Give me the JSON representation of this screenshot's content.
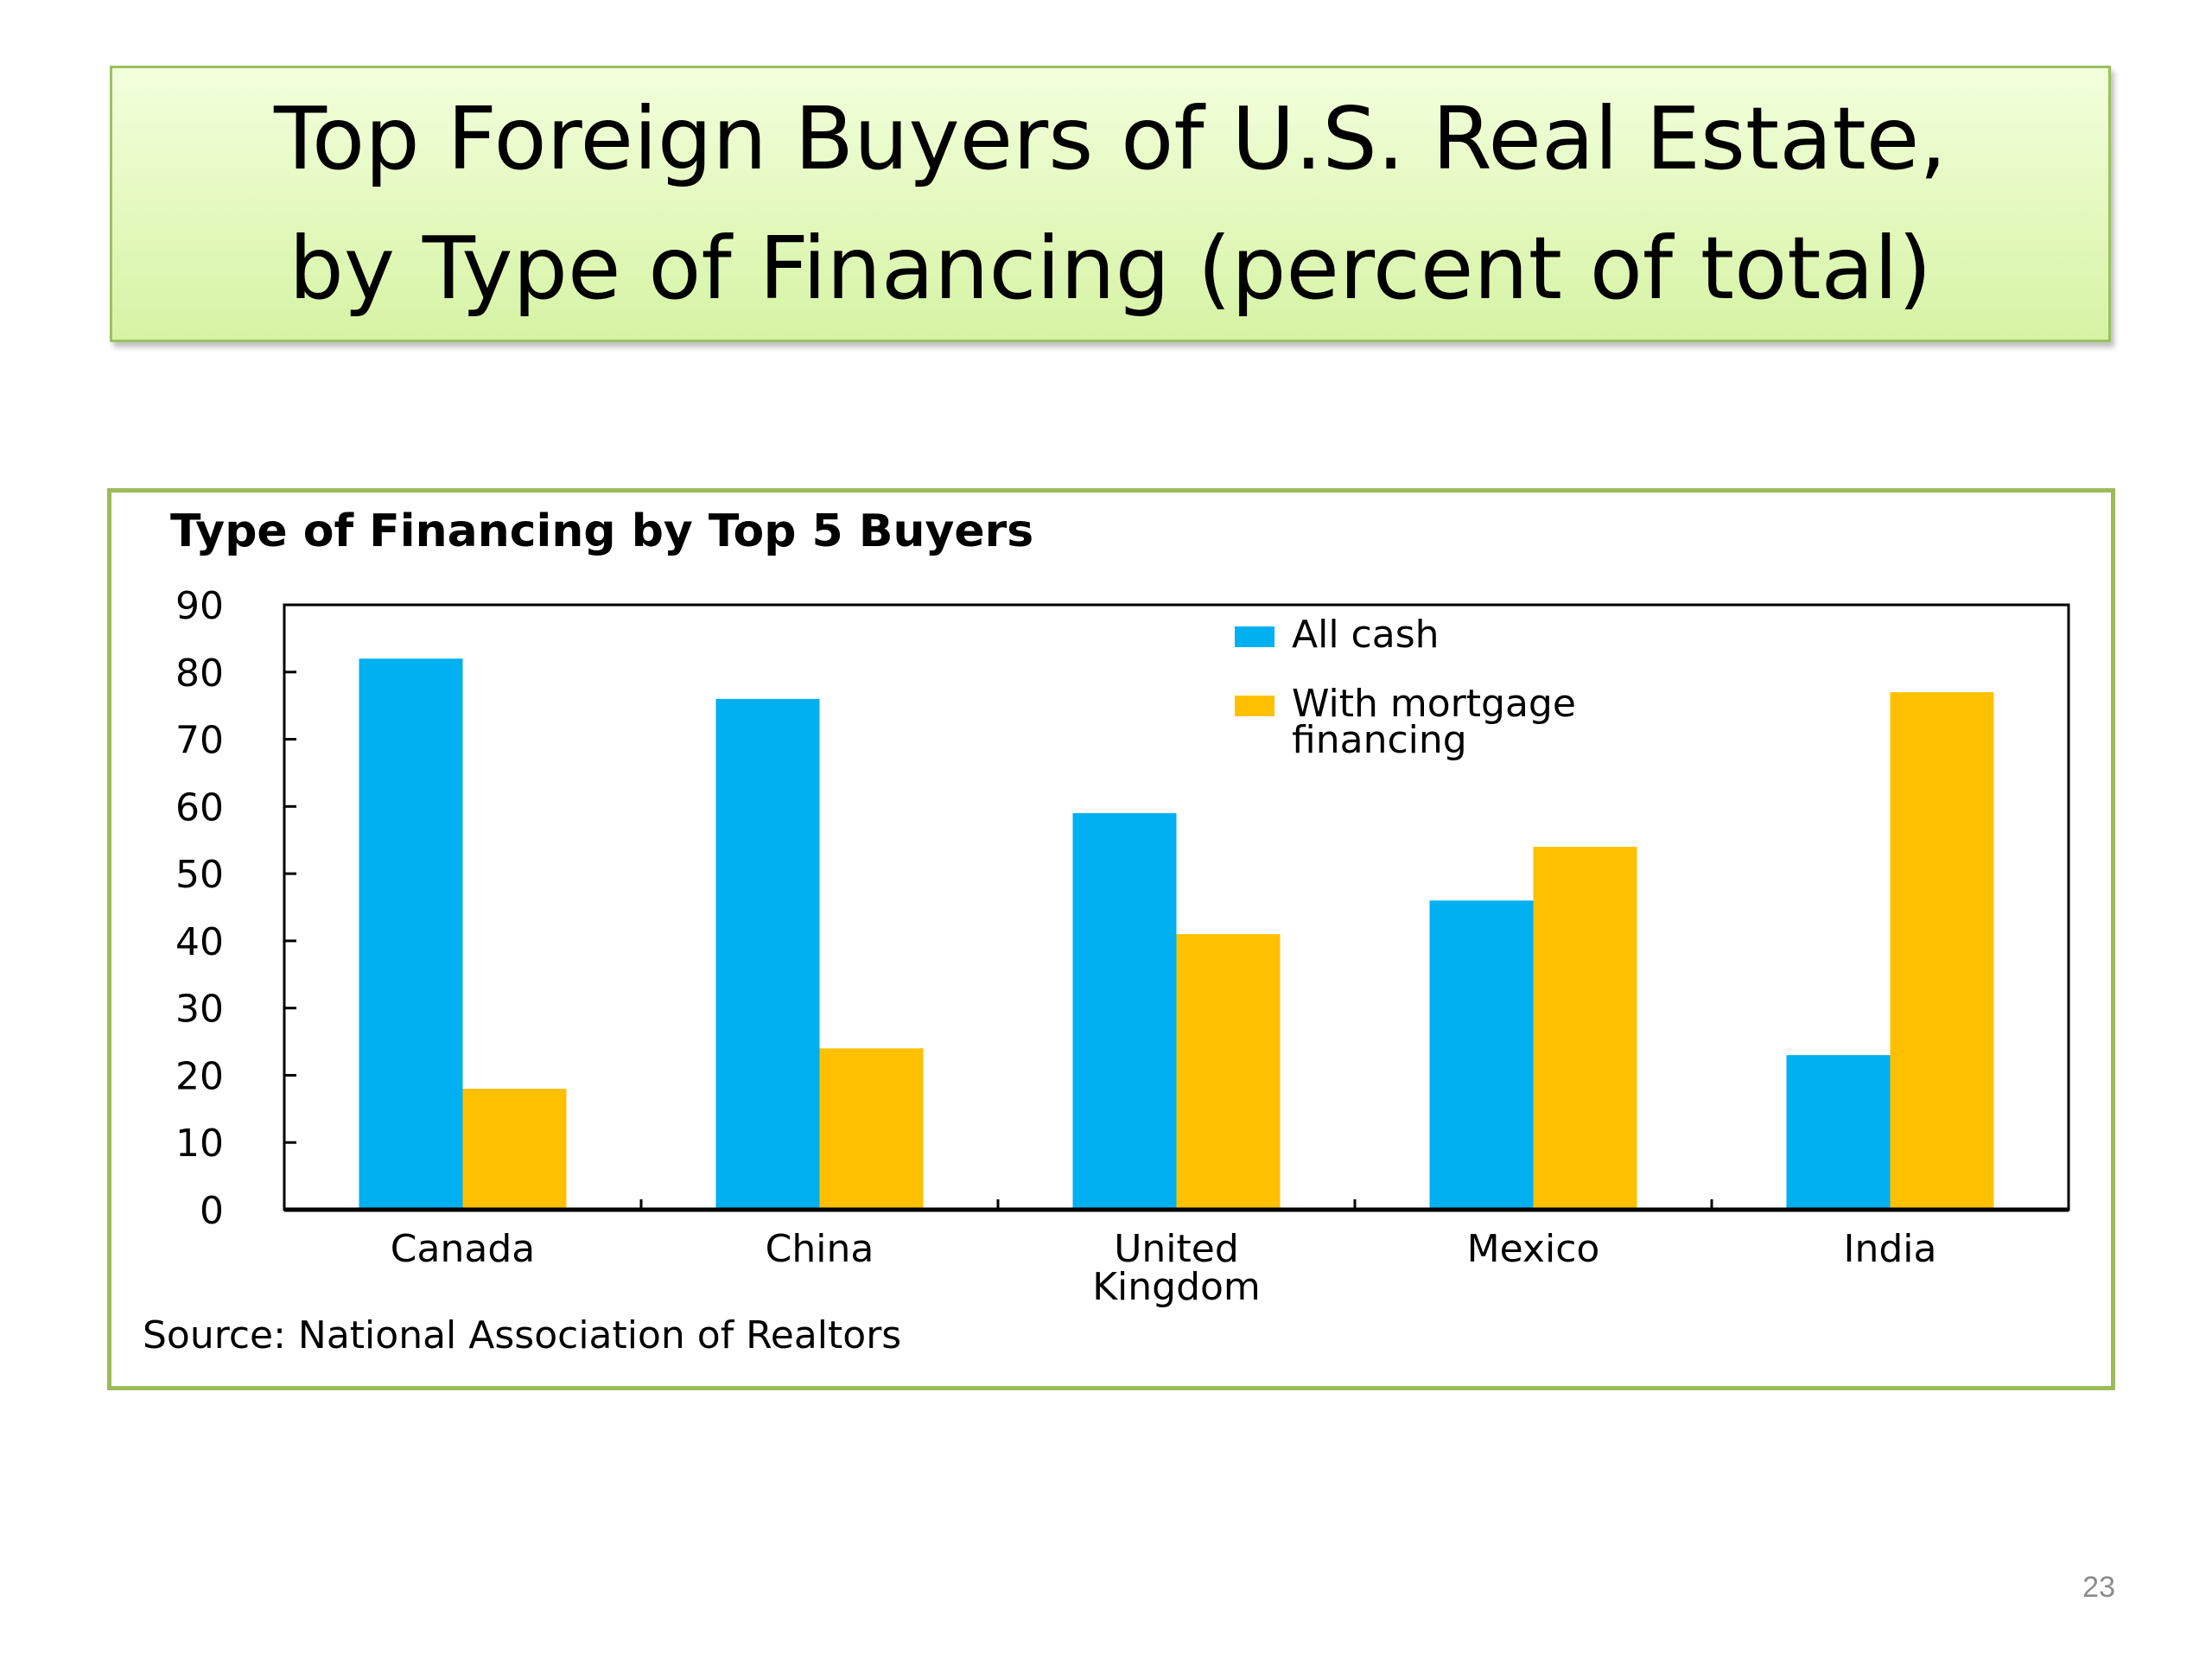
{
  "slide": {
    "title_line1": "Top Foreign Buyers of U.S. Real Estate,",
    "title_line2": "by Type of Financing (percent of total)",
    "page_number": "23"
  },
  "chart_data": {
    "type": "bar",
    "title": "Type of Financing by Top 5 Buyers",
    "categories": [
      [
        "Canada"
      ],
      [
        "China"
      ],
      [
        "United",
        "Kingdom"
      ],
      [
        "Mexico"
      ],
      [
        "India"
      ]
    ],
    "series": [
      {
        "name": "All cash",
        "color": "#00b0f0",
        "values": [
          82,
          76,
          59,
          46,
          23
        ]
      },
      {
        "name": "With mortgage financing",
        "legend_lines": [
          "With mortgage",
          "financing"
        ],
        "color": "#ffc000",
        "values": [
          18,
          24,
          41,
          54,
          77
        ]
      }
    ],
    "ylim": [
      0,
      90
    ],
    "yticks": [
      0,
      10,
      20,
      30,
      40,
      50,
      60,
      70,
      80,
      90
    ],
    "xlabel": "",
    "ylabel": "",
    "legend_position": "top-right",
    "grid": false,
    "source": "Source: National Association of Realtors"
  }
}
